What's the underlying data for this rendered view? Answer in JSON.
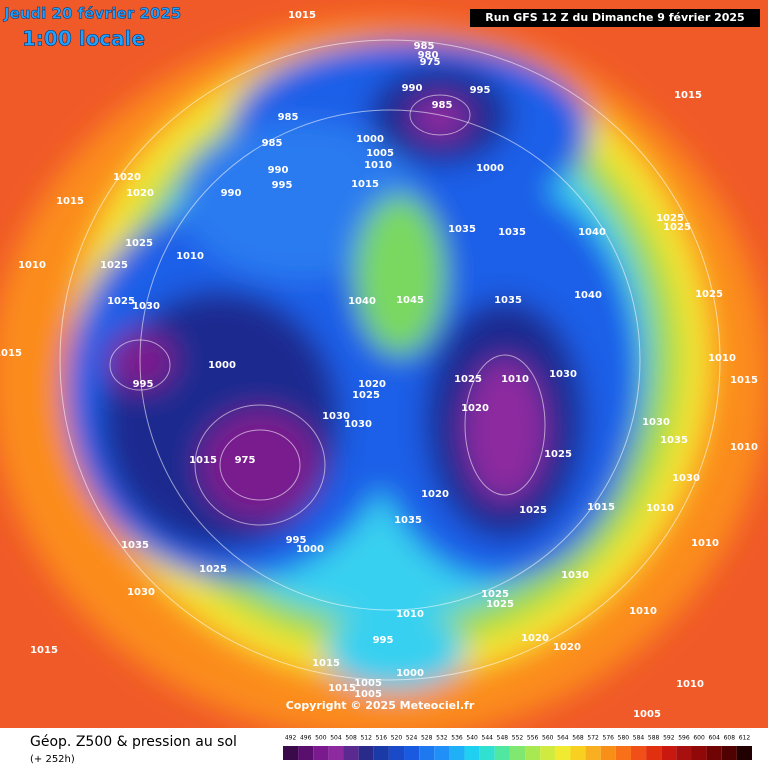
{
  "header": {
    "date": "Jeudi 20 février 2025",
    "time": "1:00 locale",
    "run": "Run GFS 12 Z du Dimanche 9 février 2025"
  },
  "footer": {
    "title": "Géop. Z500 & pression au sol",
    "lead": "(+ 252h)",
    "copyright": "Copyright © 2025 Meteociel.fr"
  },
  "pressure_labels": [
    1015,
    985,
    980,
    975,
    990,
    995,
    985,
    1015,
    985,
    985,
    1000,
    1005,
    990,
    1010,
    1000,
    995,
    1015,
    1020,
    990,
    1020,
    1015,
    1035,
    1035,
    1040,
    1025,
    1025,
    1025,
    1010,
    1025,
    1010,
    1040,
    1045,
    1035,
    1040,
    1025,
    1025,
    1030,
    1000,
    995,
    1025,
    1010,
    1030,
    1010,
    1015,
    1015,
    1020,
    1025,
    1020,
    1030,
    1030,
    1030,
    1035,
    1010,
    1015,
    975,
    1020,
    1025,
    1030,
    1015,
    1010,
    1025,
    1035,
    995,
    1000,
    1035,
    1010,
    1025,
    1030,
    1030,
    1025,
    1025,
    1010,
    1010,
    995,
    1020,
    1020,
    1015,
    1000,
    1015,
    1015,
    1005,
    1005,
    1010,
    1005
  ],
  "legend": {
    "ticks": [
      492,
      496,
      500,
      504,
      508,
      512,
      516,
      520,
      524,
      528,
      532,
      536,
      540,
      544,
      548,
      552,
      556,
      560,
      564,
      568,
      572,
      576,
      580,
      584,
      588,
      592,
      596,
      600,
      604,
      608,
      612
    ],
    "colors": [
      "#3a0a4a",
      "#5a0f6e",
      "#7a1a8e",
      "#8e2aa0",
      "#5a2a90",
      "#2a2a8a",
      "#1a3aa8",
      "#1a4ac8",
      "#1a5ae0",
      "#1e78f0",
      "#2090f8",
      "#20b0f8",
      "#20d0f0",
      "#30e0d0",
      "#50e8a0",
      "#80e870",
      "#a8e850",
      "#d0ea40",
      "#f0ea30",
      "#f8d020",
      "#f8b020",
      "#f89018",
      "#f87018",
      "#f05018",
      "#e03010",
      "#c81810",
      "#a81010",
      "#900808",
      "#700404",
      "#500202",
      "#200000"
    ]
  }
}
